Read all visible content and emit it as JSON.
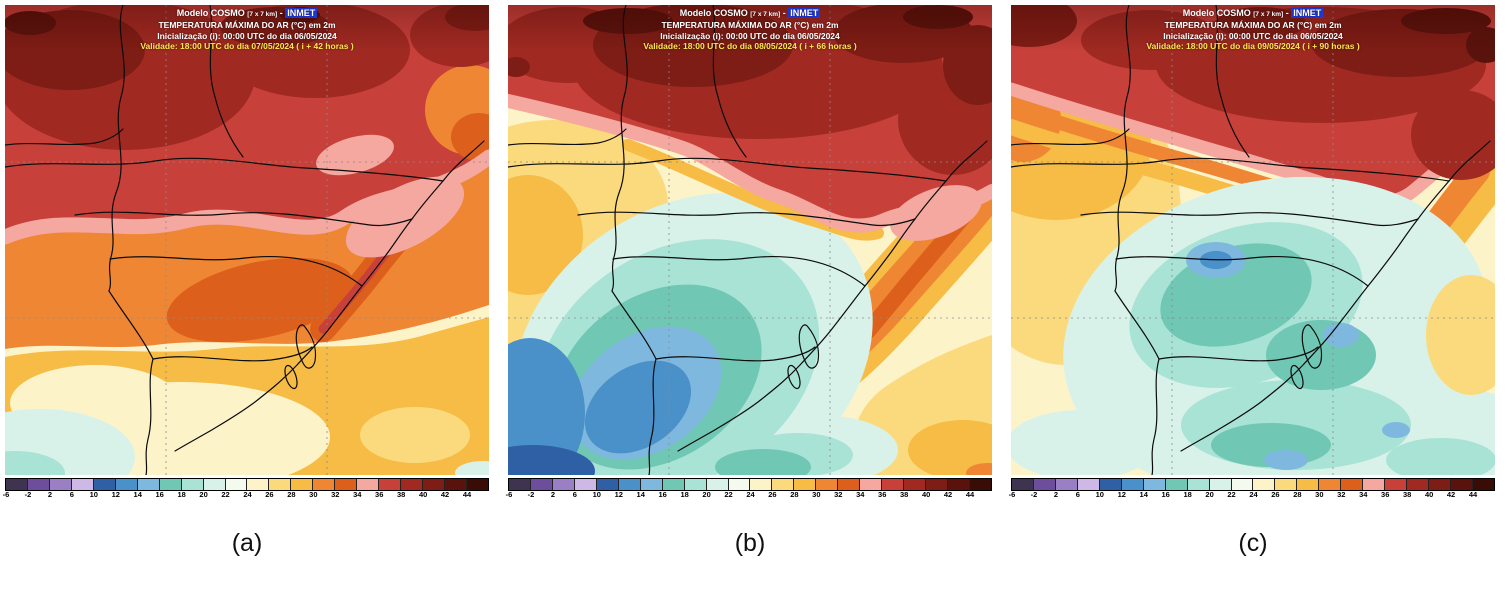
{
  "panels": [
    {
      "caption": "(a)",
      "header": {
        "model": "Modelo COSMO",
        "resolution": "[7 x 7 km]",
        "separator": "-",
        "agency": "INMET",
        "variable": "TEMPERATURA MÁXIMA DO AR (°C) em 2m",
        "initialization": "Inicialização (i): 00:00 UTC do dia 06/05/2024",
        "validity": "Validade: 18:00 UTC do dia 07/05/2024 ( i + 42 horas )"
      }
    },
    {
      "caption": "(b)",
      "header": {
        "model": "Modelo COSMO",
        "resolution": "[7 x 7 km]",
        "separator": "-",
        "agency": "INMET",
        "variable": "TEMPERATURA MÁXIMA DO AR (°C) em 2m",
        "initialization": "Inicialização (i): 00:00 UTC do dia 06/05/2024",
        "validity": "Validade: 18:00 UTC do dia 08/05/2024 ( i + 66 horas )"
      }
    },
    {
      "caption": "(c)",
      "header": {
        "model": "Modelo COSMO",
        "resolution": "[7 x 7 km]",
        "separator": "-",
        "agency": "INMET",
        "variable": "TEMPERATURA MÁXIMA DO AR (°C) em 2m",
        "initialization": "Inicialização (i): 00:00 UTC do dia 06/05/2024",
        "validity": "Validade: 18:00 UTC do dia 09/05/2024 ( i + 90 horas )"
      }
    }
  ],
  "colorbar": {
    "unit": "°C",
    "stops": [
      {
        "label": "-6",
        "color": "#3f3450"
      },
      {
        "label": "-2",
        "color": "#6d4e9c"
      },
      {
        "label": "2",
        "color": "#9b7fc4"
      },
      {
        "label": "6",
        "color": "#cdb8e6"
      },
      {
        "label": "10",
        "color": "#2f5fa5"
      },
      {
        "label": "12",
        "color": "#4a90c9"
      },
      {
        "label": "14",
        "color": "#7fb8de"
      },
      {
        "label": "16",
        "color": "#6fc7b4"
      },
      {
        "label": "18",
        "color": "#a8e3d5"
      },
      {
        "label": "20",
        "color": "#d8f2ea"
      },
      {
        "label": "22",
        "color": "#f4fbee"
      },
      {
        "label": "24",
        "color": "#fdf3c9"
      },
      {
        "label": "26",
        "color": "#fbda7e"
      },
      {
        "label": "28",
        "color": "#f6bc45"
      },
      {
        "label": "30",
        "color": "#ef8633"
      },
      {
        "label": "32",
        "color": "#dd5f1c"
      },
      {
        "label": "34",
        "color": "#f4a8a0"
      },
      {
        "label": "36",
        "color": "#c8403a"
      },
      {
        "label": "38",
        "color": "#a02a22"
      },
      {
        "label": "40",
        "color": "#7e1d15"
      },
      {
        "label": "42",
        "color": "#5a130c"
      },
      {
        "label": "44",
        "color": "#3a0c06"
      }
    ]
  }
}
